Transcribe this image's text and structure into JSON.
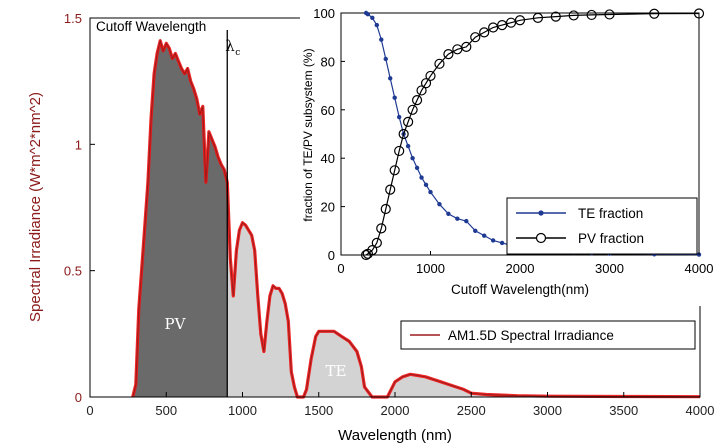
{
  "chart_data": [
    {
      "type": "area",
      "xlabel": "Wavelength (nm)",
      "ylabel": "Spectral Irradiance (W*m^2*nm^2)",
      "xlim": [
        0,
        4000
      ],
      "ylim": [
        0,
        1.5
      ],
      "xticks": [
        "0",
        "500",
        "1000",
        "1500",
        "2000",
        "2500",
        "3000",
        "3500",
        "4000"
      ],
      "yticks": [
        "0",
        "0.5",
        "1",
        "1.5"
      ],
      "grid": false,
      "legend": {
        "position": "right",
        "label": "AM1.5D Spectral Irradiance"
      },
      "annotations": {
        "cutoff_title": "Cutoff Wavelength",
        "cutoff_symbol": "λ",
        "cutoff_sub": "c",
        "region_pv": "PV",
        "region_te": "TE"
      },
      "cutoff_nm": 900,
      "colors": {
        "pv_fill": "#6a6a6a",
        "te_fill": "#d3d3d3",
        "spectrum_line": "#9b1b1b",
        "spectrum_edge": "#ee1111"
      },
      "series": [
        {
          "name": "AM1.5D Spectral Irradiance",
          "x": [
            280,
            300,
            320,
            350,
            380,
            400,
            420,
            440,
            460,
            480,
            500,
            520,
            540,
            560,
            580,
            600,
            620,
            640,
            660,
            680,
            700,
            720,
            740,
            760,
            780,
            800,
            820,
            840,
            860,
            880,
            900,
            920,
            940,
            960,
            980,
            1000,
            1020,
            1040,
            1060,
            1080,
            1100,
            1120,
            1140,
            1160,
            1180,
            1200,
            1220,
            1240,
            1260,
            1280,
            1300,
            1320,
            1340,
            1360,
            1380,
            1400,
            1420,
            1450,
            1480,
            1500,
            1550,
            1600,
            1650,
            1700,
            1750,
            1780,
            1800,
            1850,
            1900,
            1950,
            2000,
            2050,
            2100,
            2150,
            2200,
            2250,
            2300,
            2350,
            2400,
            2450,
            2500,
            2600,
            2800,
            3000,
            3500,
            4000
          ],
          "values": [
            0,
            0.05,
            0.35,
            0.6,
            0.85,
            1.1,
            1.28,
            1.36,
            1.41,
            1.37,
            1.4,
            1.38,
            1.34,
            1.36,
            1.33,
            1.3,
            1.28,
            1.3,
            1.25,
            1.22,
            1.18,
            1.12,
            1.15,
            0.85,
            1.05,
            1.02,
            0.99,
            0.95,
            0.92,
            0.9,
            0.85,
            0.55,
            0.4,
            0.58,
            0.66,
            0.69,
            0.68,
            0.66,
            0.64,
            0.58,
            0.4,
            0.25,
            0.18,
            0.3,
            0.4,
            0.44,
            0.43,
            0.43,
            0.41,
            0.37,
            0.3,
            0.1,
            0.04,
            0,
            0,
            0,
            0.03,
            0.15,
            0.24,
            0.26,
            0.26,
            0.26,
            0.24,
            0.22,
            0.18,
            0.12,
            0.04,
            0,
            0,
            0,
            0.06,
            0.08,
            0.09,
            0.085,
            0.08,
            0.07,
            0.06,
            0.05,
            0.04,
            0.03,
            0.015,
            0.01,
            0.005,
            0.003,
            0.002,
            0.001
          ]
        }
      ]
    },
    {
      "type": "line",
      "xlabel": "Cutoff Wavelength(nm)",
      "ylabel": "fraction of TE/PV subsystem (%)",
      "xlim": [
        0,
        4000
      ],
      "ylim": [
        0,
        100
      ],
      "xticks": [
        "0",
        "1000",
        "2000",
        "3000",
        "4000"
      ],
      "yticks": [
        "0",
        "20",
        "40",
        "60",
        "80",
        "100"
      ],
      "grid": false,
      "legend": {
        "position": "bottom-right"
      },
      "series": [
        {
          "name": "TE fraction",
          "marker": "dot",
          "color": "#1f3a93",
          "x": [
            280,
            300,
            350,
            400,
            450,
            500,
            550,
            600,
            650,
            700,
            750,
            800,
            850,
            900,
            950,
            1000,
            1100,
            1200,
            1300,
            1400,
            1500,
            1600,
            1700,
            1800,
            1900,
            2000,
            2200,
            2400,
            2600,
            2800,
            3000,
            3500,
            4000
          ],
          "values": [
            100,
            99.5,
            98,
            95,
            89,
            81,
            73,
            65,
            57,
            50,
            45,
            40,
            36,
            32,
            29,
            26,
            21,
            17,
            15,
            14,
            10,
            8,
            6,
            5,
            4,
            3,
            2,
            1.5,
            1,
            0.8,
            0.6,
            0.3,
            0.2
          ]
        },
        {
          "name": "PV fraction",
          "marker": "open-circle",
          "color": "#000000",
          "x": [
            280,
            300,
            350,
            400,
            450,
            500,
            550,
            600,
            650,
            700,
            750,
            800,
            850,
            900,
            950,
            1000,
            1100,
            1200,
            1300,
            1400,
            1500,
            1600,
            1700,
            1800,
            1900,
            2000,
            2200,
            2400,
            2600,
            2800,
            3000,
            3500,
            4000
          ],
          "values": [
            0,
            0.5,
            2,
            5,
            11,
            19,
            27,
            35,
            43,
            50,
            55,
            60,
            64,
            68,
            71,
            74,
            79,
            83,
            85,
            86,
            90,
            92,
            94,
            95,
            96,
            97,
            98,
            98.5,
            99,
            99.2,
            99.4,
            99.7,
            99.8
          ]
        }
      ]
    }
  ]
}
